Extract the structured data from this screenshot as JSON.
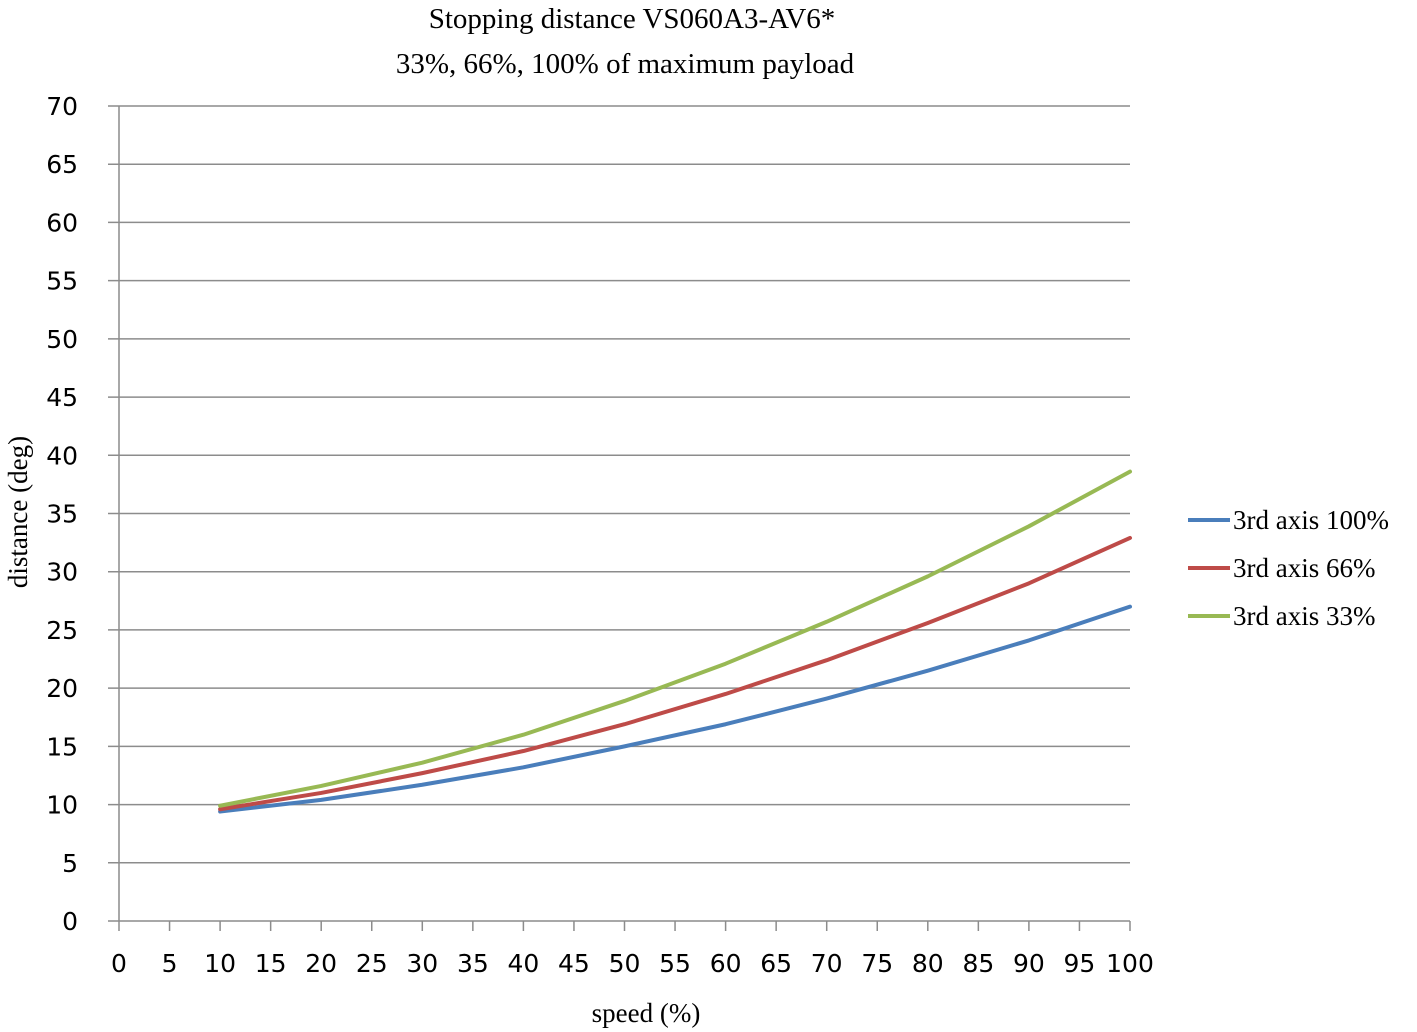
{
  "chart_data": {
    "type": "line",
    "title": "Stopping distance VS060A3-AV6*",
    "subtitle": "33%, 66%, 100% of maximum payload",
    "xlabel": "speed (%)",
    "ylabel": "distance (deg)",
    "xlim": [
      0,
      100
    ],
    "ylim": [
      0,
      70
    ],
    "xticks": [
      0,
      5,
      10,
      15,
      20,
      25,
      30,
      35,
      40,
      45,
      50,
      55,
      60,
      65,
      70,
      75,
      80,
      85,
      90,
      95,
      100
    ],
    "yticks": [
      0,
      5,
      10,
      15,
      20,
      25,
      30,
      35,
      40,
      45,
      50,
      55,
      60,
      65,
      70
    ],
    "grid": true,
    "legend_position": "right",
    "x": [
      10,
      20,
      30,
      40,
      50,
      60,
      70,
      80,
      90,
      100
    ],
    "series": [
      {
        "name": "3rd axis 100%",
        "color": "#4a7ebb",
        "values": [
          9.4,
          10.4,
          11.7,
          13.2,
          15.0,
          16.9,
          19.1,
          21.5,
          24.1,
          27.0
        ]
      },
      {
        "name": "3rd axis 66%",
        "color": "#be4b48",
        "values": [
          9.6,
          11.0,
          12.7,
          14.6,
          16.9,
          19.5,
          22.4,
          25.6,
          29.0,
          32.9
        ]
      },
      {
        "name": "3rd axis 33%",
        "color": "#98b954",
        "values": [
          9.9,
          11.6,
          13.6,
          16.0,
          18.9,
          22.1,
          25.7,
          29.6,
          33.9,
          38.6
        ]
      }
    ]
  }
}
